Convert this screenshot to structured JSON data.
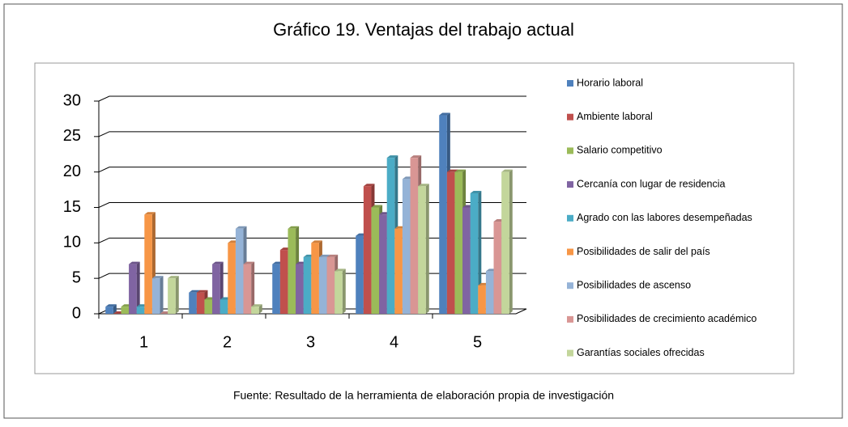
{
  "chart_data": {
    "type": "bar",
    "title": "Gráfico 19. Ventajas del trabajo actual",
    "source": "Fuente: Resultado de la herramienta de elaboración propia de investigación",
    "categories": [
      "1",
      "2",
      "3",
      "4",
      "5"
    ],
    "series": [
      {
        "name": "Horario laboral",
        "color": "#4F81BD",
        "values": [
          1,
          3,
          7,
          11,
          28
        ]
      },
      {
        "name": "Ambiente laboral",
        "color": "#C0504D",
        "values": [
          0,
          3,
          9,
          18,
          20
        ]
      },
      {
        "name": "Salario competitivo",
        "color": "#9BBB59",
        "values": [
          1,
          2,
          12,
          15,
          20
        ]
      },
      {
        "name": "Cercanía con lugar de residencia",
        "color": "#8064A2",
        "values": [
          7,
          7,
          7,
          14,
          15
        ]
      },
      {
        "name": "Agrado con las labores desempeñadas",
        "color": "#4BACC6",
        "values": [
          1,
          2,
          8,
          22,
          17
        ]
      },
      {
        "name": "Posibilidades de salir del país",
        "color": "#F79646",
        "values": [
          14,
          10,
          10,
          12,
          4
        ]
      },
      {
        "name": "Posibilidades de ascenso",
        "color": "#95B3D7",
        "values": [
          5,
          12,
          8,
          19,
          6
        ]
      },
      {
        "name": "Posibilidades de crecimiento académico",
        "color": "#D99694",
        "values": [
          0,
          7,
          8,
          22,
          13
        ]
      },
      {
        "name": "Garantías sociales ofrecidas",
        "color": "#C3D69B",
        "values": [
          5,
          1,
          6,
          18,
          20
        ]
      }
    ],
    "ylim": [
      0,
      30
    ],
    "yticks": [
      0,
      5,
      10,
      15,
      20,
      25,
      30
    ],
    "grid": true,
    "legend": "right"
  }
}
